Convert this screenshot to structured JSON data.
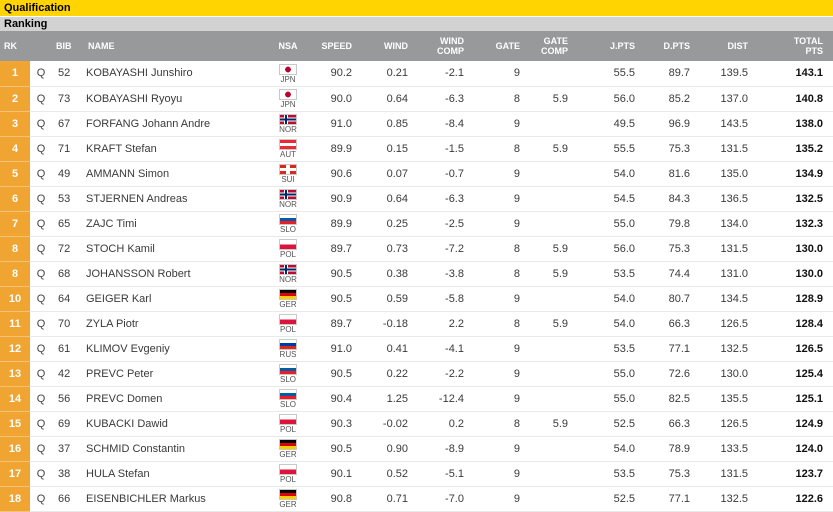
{
  "page": {
    "section_title": "Qualification",
    "subsection_title": "Ranking"
  },
  "colors": {
    "section_bar": "#ffd400",
    "subsection_bar": "#d2d2d2",
    "table_header_bg": "#97999b",
    "rank_cell_bg": "#f0a432"
  },
  "table": {
    "columns": [
      "RK",
      "",
      "BIB",
      "NAME",
      "NSA",
      "SPEED",
      "WIND",
      "WIND\nCOMP",
      "GATE",
      "GATE\nCOMP",
      "J.PTS",
      "D.PTS",
      "DIST",
      "TOTAL\nPTS"
    ],
    "rows": [
      {
        "rank": "1",
        "status": "Q",
        "bib": "52",
        "name": "KOBAYASHI Junshiro",
        "nsa": "JPN",
        "speed": "90.2",
        "wind": "0.21",
        "wind_comp": "-2.1",
        "gate": "9",
        "gate_comp": "",
        "j_pts": "55.5",
        "d_pts": "89.7",
        "dist": "139.5",
        "total_pts": "143.1"
      },
      {
        "rank": "2",
        "status": "Q",
        "bib": "73",
        "name": "KOBAYASHI Ryoyu",
        "nsa": "JPN",
        "speed": "90.0",
        "wind": "0.64",
        "wind_comp": "-6.3",
        "gate": "8",
        "gate_comp": "5.9",
        "j_pts": "56.0",
        "d_pts": "85.2",
        "dist": "137.0",
        "total_pts": "140.8"
      },
      {
        "rank": "3",
        "status": "Q",
        "bib": "67",
        "name": "FORFANG Johann Andre",
        "nsa": "NOR",
        "speed": "91.0",
        "wind": "0.85",
        "wind_comp": "-8.4",
        "gate": "9",
        "gate_comp": "",
        "j_pts": "49.5",
        "d_pts": "96.9",
        "dist": "143.5",
        "total_pts": "138.0"
      },
      {
        "rank": "4",
        "status": "Q",
        "bib": "71",
        "name": "KRAFT Stefan",
        "nsa": "AUT",
        "speed": "89.9",
        "wind": "0.15",
        "wind_comp": "-1.5",
        "gate": "8",
        "gate_comp": "5.9",
        "j_pts": "55.5",
        "d_pts": "75.3",
        "dist": "131.5",
        "total_pts": "135.2"
      },
      {
        "rank": "5",
        "status": "Q",
        "bib": "49",
        "name": "AMMANN Simon",
        "nsa": "SUI",
        "speed": "90.6",
        "wind": "0.07",
        "wind_comp": "-0.7",
        "gate": "9",
        "gate_comp": "",
        "j_pts": "54.0",
        "d_pts": "81.6",
        "dist": "135.0",
        "total_pts": "134.9"
      },
      {
        "rank": "6",
        "status": "Q",
        "bib": "53",
        "name": "STJERNEN Andreas",
        "nsa": "NOR",
        "speed": "90.9",
        "wind": "0.64",
        "wind_comp": "-6.3",
        "gate": "9",
        "gate_comp": "",
        "j_pts": "54.5",
        "d_pts": "84.3",
        "dist": "136.5",
        "total_pts": "132.5"
      },
      {
        "rank": "7",
        "status": "Q",
        "bib": "65",
        "name": "ZAJC Timi",
        "nsa": "SLO",
        "speed": "89.9",
        "wind": "0.25",
        "wind_comp": "-2.5",
        "gate": "9",
        "gate_comp": "",
        "j_pts": "55.0",
        "d_pts": "79.8",
        "dist": "134.0",
        "total_pts": "132.3"
      },
      {
        "rank": "8",
        "status": "Q",
        "bib": "72",
        "name": "STOCH Kamil",
        "nsa": "POL",
        "speed": "89.7",
        "wind": "0.73",
        "wind_comp": "-7.2",
        "gate": "8",
        "gate_comp": "5.9",
        "j_pts": "56.0",
        "d_pts": "75.3",
        "dist": "131.5",
        "total_pts": "130.0"
      },
      {
        "rank": "8",
        "status": "Q",
        "bib": "68",
        "name": "JOHANSSON Robert",
        "nsa": "NOR",
        "speed": "90.5",
        "wind": "0.38",
        "wind_comp": "-3.8",
        "gate": "8",
        "gate_comp": "5.9",
        "j_pts": "53.5",
        "d_pts": "74.4",
        "dist": "131.0",
        "total_pts": "130.0"
      },
      {
        "rank": "10",
        "status": "Q",
        "bib": "64",
        "name": "GEIGER Karl",
        "nsa": "GER",
        "speed": "90.5",
        "wind": "0.59",
        "wind_comp": "-5.8",
        "gate": "9",
        "gate_comp": "",
        "j_pts": "54.0",
        "d_pts": "80.7",
        "dist": "134.5",
        "total_pts": "128.9"
      },
      {
        "rank": "11",
        "status": "Q",
        "bib": "70",
        "name": "ZYLA Piotr",
        "nsa": "POL",
        "speed": "89.7",
        "wind": "-0.18",
        "wind_comp": "2.2",
        "gate": "8",
        "gate_comp": "5.9",
        "j_pts": "54.0",
        "d_pts": "66.3",
        "dist": "126.5",
        "total_pts": "128.4"
      },
      {
        "rank": "12",
        "status": "Q",
        "bib": "61",
        "name": "KLIMOV Evgeniy",
        "nsa": "RUS",
        "speed": "91.0",
        "wind": "0.41",
        "wind_comp": "-4.1",
        "gate": "9",
        "gate_comp": "",
        "j_pts": "53.5",
        "d_pts": "77.1",
        "dist": "132.5",
        "total_pts": "126.5"
      },
      {
        "rank": "13",
        "status": "Q",
        "bib": "42",
        "name": "PREVC Peter",
        "nsa": "SLO",
        "speed": "90.5",
        "wind": "0.22",
        "wind_comp": "-2.2",
        "gate": "9",
        "gate_comp": "",
        "j_pts": "55.0",
        "d_pts": "72.6",
        "dist": "130.0",
        "total_pts": "125.4"
      },
      {
        "rank": "14",
        "status": "Q",
        "bib": "56",
        "name": "PREVC Domen",
        "nsa": "SLO",
        "speed": "90.4",
        "wind": "1.25",
        "wind_comp": "-12.4",
        "gate": "9",
        "gate_comp": "",
        "j_pts": "55.0",
        "d_pts": "82.5",
        "dist": "135.5",
        "total_pts": "125.1"
      },
      {
        "rank": "15",
        "status": "Q",
        "bib": "69",
        "name": "KUBACKI Dawid",
        "nsa": "POL",
        "speed": "90.3",
        "wind": "-0.02",
        "wind_comp": "0.2",
        "gate": "8",
        "gate_comp": "5.9",
        "j_pts": "52.5",
        "d_pts": "66.3",
        "dist": "126.5",
        "total_pts": "124.9"
      },
      {
        "rank": "16",
        "status": "Q",
        "bib": "37",
        "name": "SCHMID Constantin",
        "nsa": "GER",
        "speed": "90.5",
        "wind": "0.90",
        "wind_comp": "-8.9",
        "gate": "9",
        "gate_comp": "",
        "j_pts": "54.0",
        "d_pts": "78.9",
        "dist": "133.5",
        "total_pts": "124.0"
      },
      {
        "rank": "17",
        "status": "Q",
        "bib": "38",
        "name": "HULA Stefan",
        "nsa": "POL",
        "speed": "90.1",
        "wind": "0.52",
        "wind_comp": "-5.1",
        "gate": "9",
        "gate_comp": "",
        "j_pts": "53.5",
        "d_pts": "75.3",
        "dist": "131.5",
        "total_pts": "123.7"
      },
      {
        "rank": "18",
        "status": "Q",
        "bib": "66",
        "name": "EISENBICHLER Markus",
        "nsa": "GER",
        "speed": "90.8",
        "wind": "0.71",
        "wind_comp": "-7.0",
        "gate": "9",
        "gate_comp": "",
        "j_pts": "52.5",
        "d_pts": "77.1",
        "dist": "132.5",
        "total_pts": "122.6"
      }
    ]
  }
}
